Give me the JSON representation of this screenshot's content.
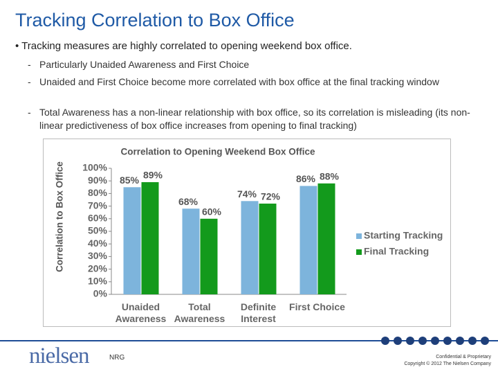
{
  "header": {
    "title": "Tracking Correlation to Box Office"
  },
  "bullets": {
    "main": "Tracking measures are highly correlated to opening weekend box office.",
    "sub": [
      "Particularly Unaided Awareness and First Choice",
      "Unaided and First Choice become more correlated with box office at the final tracking window",
      "Total Awareness has a non-linear relationship with box office, so its correlation is misleading (its non-linear predictiveness of box office increases from opening to final tracking)"
    ]
  },
  "chart_data": {
    "type": "bar",
    "title": "Correlation to Opening Weekend Box Office",
    "ylabel": "Correlation to Box Office",
    "categories": [
      "Unaided Awareness",
      "Total Awareness",
      "Definite Interest",
      "First Choice"
    ],
    "series": [
      {
        "name": "Starting Tracking",
        "color": "#7db4dc",
        "values": [
          85,
          68,
          74,
          86
        ],
        "value_labels": [
          "85%",
          "68%",
          "74%",
          "86%"
        ]
      },
      {
        "name": "Final Tracking",
        "color": "#139a1c",
        "values": [
          89,
          60,
          72,
          88
        ],
        "value_labels": [
          "89%",
          "60%",
          "72%",
          "88%"
        ]
      }
    ],
    "ylim": [
      0,
      100
    ],
    "yticks": [
      {
        "value": 0,
        "label": "0%"
      },
      {
        "value": 10,
        "label": "10%"
      },
      {
        "value": 20,
        "label": "20%"
      },
      {
        "value": 30,
        "label": "30%"
      },
      {
        "value": 40,
        "label": "40%"
      },
      {
        "value": 50,
        "label": "50%"
      },
      {
        "value": 60,
        "label": "60%"
      },
      {
        "value": 70,
        "label": "70%"
      },
      {
        "value": 80,
        "label": "80%"
      },
      {
        "value": 90,
        "label": "90%"
      },
      {
        "value": 100,
        "label": "100%"
      }
    ],
    "grid": false,
    "legend": "right"
  },
  "footer": {
    "logo": "nielsen",
    "label": "NRG",
    "confidential": "Confidential & Proprietary",
    "copyright": "Copyright © 2012 The Nielsen Company"
  }
}
